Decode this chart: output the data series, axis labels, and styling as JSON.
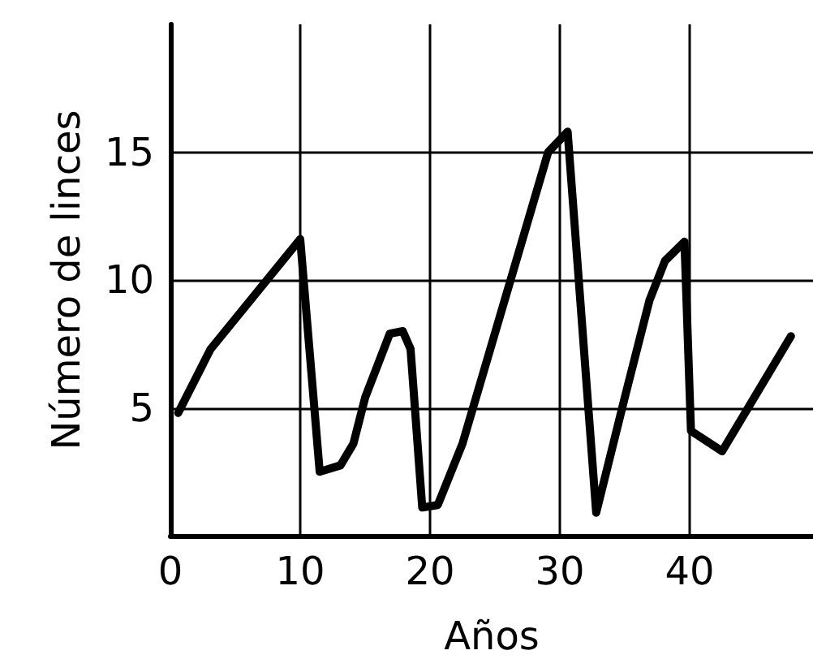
{
  "chart_data": {
    "type": "line",
    "xlabel": "Años",
    "ylabel": "Número de linces",
    "x": [
      0.6,
      3.1,
      10,
      11.5,
      13.1,
      14.1,
      15,
      16.9,
      17.9,
      18.5,
      19.4,
      20.6,
      22.5,
      29.1,
      30.6,
      32.8,
      35,
      36.9,
      38.1,
      39.6,
      40.1,
      42.5,
      47.8
    ],
    "series": [
      {
        "color": "#000000",
        "values": [
          4.8,
          7.3,
          11.6,
          2.5,
          2.75,
          3.6,
          5.4,
          7.9,
          8,
          7.3,
          1.1,
          1.2,
          3.6,
          15,
          15.8,
          0.9,
          5.4,
          9.2,
          10.75,
          11.5,
          4.1,
          3.3,
          7.8
        ]
      }
    ],
    "xlim": [
      0,
      49.5
    ],
    "xticks": [
      0,
      10,
      20,
      30,
      40
    ],
    "ylim": [
      0,
      20
    ],
    "yticks": [
      5,
      10,
      15
    ],
    "grid": true,
    "marker": "none",
    "line_style": "solid"
  }
}
